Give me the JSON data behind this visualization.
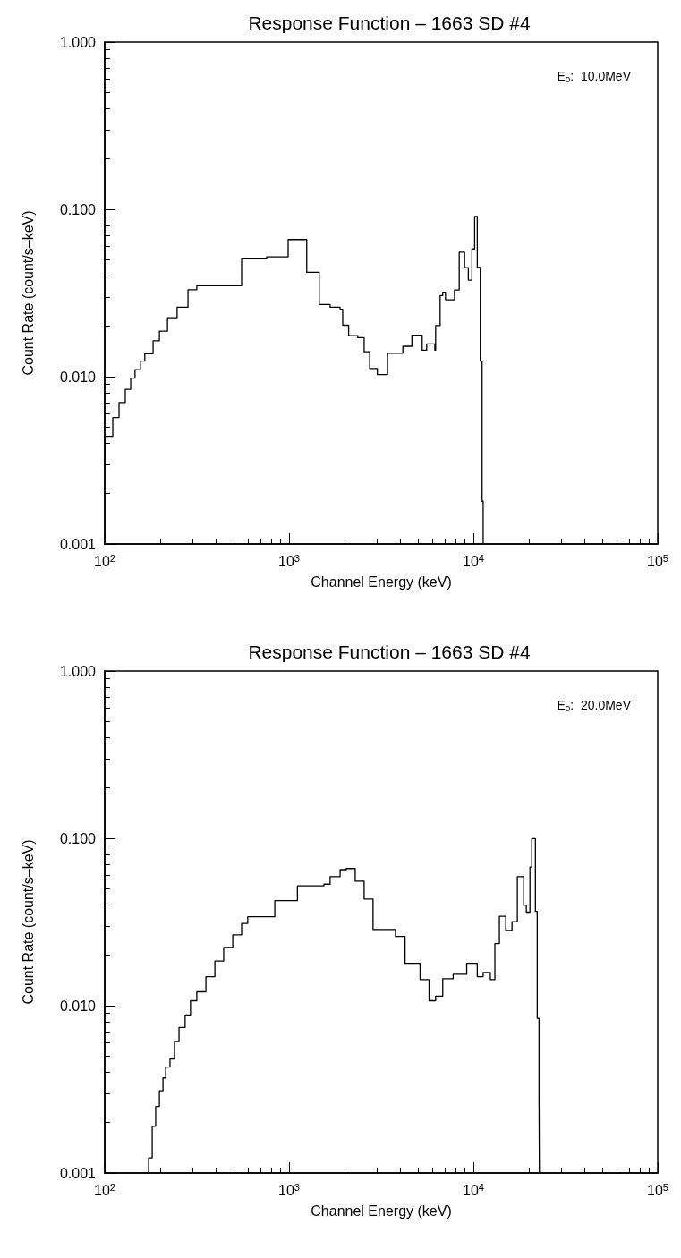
{
  "chart_data": [
    {
      "type": "step",
      "title": "Response Function – 1663 SD #4",
      "xlabel": "Channel Energy (keV)",
      "ylabel": "Count Rate (count/s–keV)",
      "annotations": [
        "E$_{0}$:  10.0MeV"
      ],
      "log": "xy",
      "grid": false,
      "marker": "none",
      "line_style": "solid",
      "xlim": [
        100,
        100000
      ],
      "xticks": [
        {
          "value": 100,
          "label": "10$^{2}$"
        },
        {
          "value": 1000,
          "label": "10$^{3}$"
        },
        {
          "value": 10000,
          "label": "10$^{4}$"
        },
        {
          "value": 100000,
          "label": "10$^{5}$"
        }
      ],
      "ylim": [
        0.001,
        1
      ],
      "yticks": [
        {
          "value": 0.001,
          "label": "0.001"
        },
        {
          "value": 0.01,
          "label": "0.010"
        },
        {
          "value": 0.1,
          "label": "0.100"
        },
        {
          "value": 1,
          "label": "1.000"
        }
      ],
      "series": [
        {
          "color": "#000000",
          "x": [
            100,
            101,
            110.6,
            119.6,
            129.3,
            138.3,
            146,
            156,
            165,
            183,
            198,
            219,
            247,
            283,
            316,
            553,
            756,
            989,
            1247,
            1458,
            1670,
            1892,
            1955,
            2105,
            2358,
            2555,
            2737,
            3013,
            3423,
            4145,
            4640,
            5275,
            5580,
            6180,
            6240,
            6600,
            6820,
            7060,
            7650,
            7900,
            8380,
            8960,
            9390,
            9820,
            10160,
            10500,
            10900,
            11150,
            11300
          ],
          "values": [
            0.003,
            0.0044,
            0.0057,
            0.007,
            0.0084,
            0.0098,
            0.011,
            0.0124,
            0.0137,
            0.0164,
            0.0187,
            0.0225,
            0.026,
            0.0331,
            0.035,
            0.051,
            0.052,
            0.066,
            0.042,
            0.027,
            0.026,
            0.0253,
            0.0203,
            0.0176,
            0.0171,
            0.0141,
            0.0112,
            0.0103,
            0.0138,
            0.0152,
            0.0177,
            0.0144,
            0.0157,
            0.0144,
            0.0202,
            0.0305,
            0.032,
            0.0288,
            0.0288,
            0.033,
            0.0555,
            0.0449,
            0.0377,
            0.058,
            0.0907,
            0.045,
            0.0124,
            0.0018,
            0.001
          ]
        }
      ]
    },
    {
      "type": "step",
      "title": "Response Function – 1663 SD #4",
      "xlabel": "Channel Energy (keV)",
      "ylabel": "Count Rate (count/s–keV)",
      "annotations": [
        "E$_{0}$:  20.0MeV"
      ],
      "log": "xy",
      "grid": false,
      "marker": "none",
      "line_style": "solid",
      "xlim": [
        100,
        100000
      ],
      "xticks": [
        {
          "value": 100,
          "label": "10$^{2}$"
        },
        {
          "value": 1000,
          "label": "10$^{3}$"
        },
        {
          "value": 10000,
          "label": "10$^{4}$"
        },
        {
          "value": 100000,
          "label": "10$^{5}$"
        }
      ],
      "ylim": [
        0.001,
        1
      ],
      "yticks": [
        {
          "value": 0.001,
          "label": "0.001"
        },
        {
          "value": 0.01,
          "label": "0.010"
        },
        {
          "value": 0.1,
          "label": "0.100"
        },
        {
          "value": 1,
          "label": "1.000"
        }
      ],
      "series": [
        {
          "color": "#000000",
          "x": [
            170,
            173,
            181,
            189,
            198,
            207,
            214,
            226,
            239,
            253,
            273,
            292,
            316,
            354,
            396,
            442,
            495,
            553,
            597,
            837,
            1110,
            1546,
            1670,
            1892,
            2045,
            2285,
            2555,
            2855,
            3780,
            4260,
            4700,
            5140,
            5750,
            6240,
            6820,
            7770,
            9200,
            10500,
            11300,
            12360,
            13080,
            13840,
            14980,
            16200,
            17320,
            18740,
            19380,
            20270,
            20730,
            21700,
            22200,
            22700,
            22800
          ],
          "values": [
            0.001,
            0.00123,
            0.0019,
            0.0025,
            0.0031,
            0.0037,
            0.0043,
            0.0048,
            0.0061,
            0.0074,
            0.0088,
            0.0107,
            0.0121,
            0.0149,
            0.0185,
            0.0223,
            0.0265,
            0.031,
            0.034,
            0.0424,
            0.052,
            0.0532,
            0.059,
            0.065,
            0.066,
            0.0554,
            0.0434,
            0.0285,
            0.0259,
            0.0179,
            0.0179,
            0.0143,
            0.0107,
            0.0114,
            0.0145,
            0.0154,
            0.0179,
            0.0149,
            0.0158,
            0.0143,
            0.0235,
            0.0342,
            0.0282,
            0.0318,
            0.059,
            0.0398,
            0.0362,
            0.0673,
            0.0996,
            0.0366,
            0.0084,
            0.0029,
            0.001
          ]
        }
      ]
    }
  ]
}
